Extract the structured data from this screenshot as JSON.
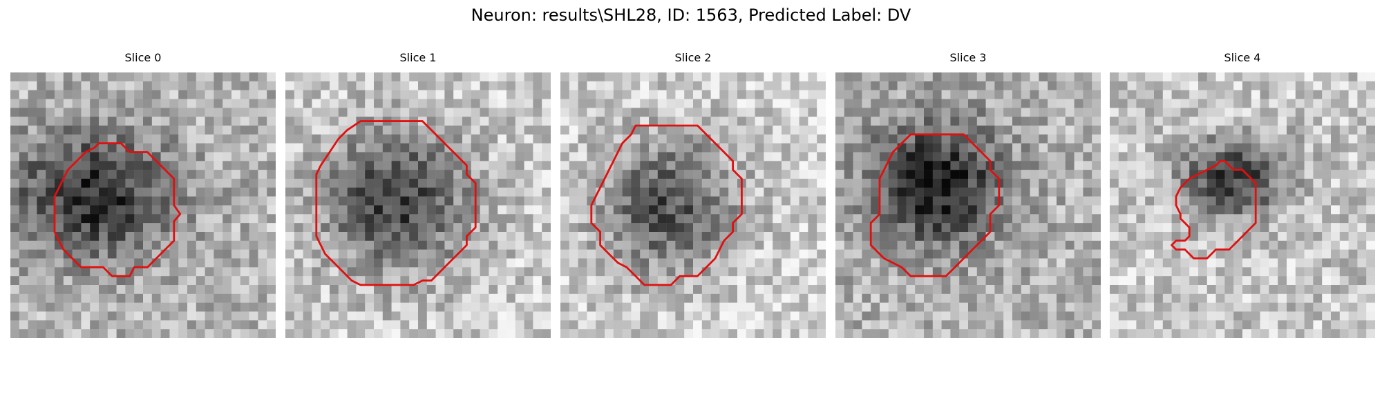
{
  "figure": {
    "title": "Neuron: results\\SHL28, ID: 1563, Predicted Label: DV"
  },
  "colors": {
    "contour": "#e01010",
    "background": "#ffffff"
  },
  "panels": [
    {
      "title": "Slice 0",
      "contour": [
        [
          10.5,
          8.0
        ],
        [
          12.5,
          8.0
        ],
        [
          13.5,
          9.0
        ],
        [
          14.5,
          9.0
        ],
        [
          15.5,
          9.0
        ],
        [
          16.5,
          10.0
        ],
        [
          17.5,
          11.0
        ],
        [
          18.5,
          12.0
        ],
        [
          18.5,
          13.0
        ],
        [
          18.5,
          14.0
        ],
        [
          18.5,
          15.0
        ],
        [
          19.2,
          16.0
        ],
        [
          18.5,
          16.8
        ],
        [
          18.5,
          18.0
        ],
        [
          18.5,
          19.0
        ],
        [
          17.5,
          20.0
        ],
        [
          16.5,
          21.0
        ],
        [
          15.5,
          22.0
        ],
        [
          14.0,
          22.0
        ],
        [
          13.5,
          23.0
        ],
        [
          11.5,
          23.0
        ],
        [
          10.5,
          22.0
        ],
        [
          9.5,
          22.0
        ],
        [
          8.0,
          22.0
        ],
        [
          7.0,
          21.0
        ],
        [
          6.0,
          20.0
        ],
        [
          5.5,
          19.0
        ],
        [
          5.0,
          18.0
        ],
        [
          5.0,
          16.0
        ],
        [
          5.0,
          15.0
        ],
        [
          5.0,
          14.0
        ],
        [
          5.5,
          13.0
        ],
        [
          6.0,
          12.0
        ],
        [
          6.5,
          11.0
        ],
        [
          7.5,
          10.0
        ],
        [
          8.5,
          9.0
        ],
        [
          9.5,
          8.5
        ],
        [
          10.0,
          8.0
        ]
      ],
      "darkness": {
        "cx": 9.2,
        "cy": 14.0,
        "rx": 11.0,
        "ry": 8.5,
        "strength": 0.55,
        "bg": 0.72,
        "seed": 11
      }
    },
    {
      "title": "Slice 1",
      "contour": [
        [
          8.5,
          5.5
        ],
        [
          15.5,
          5.5
        ],
        [
          16.5,
          6.5
        ],
        [
          17.5,
          7.5
        ],
        [
          18.5,
          8.5
        ],
        [
          19.5,
          9.5
        ],
        [
          20.5,
          10.5
        ],
        [
          20.5,
          11.5
        ],
        [
          21.5,
          12.5
        ],
        [
          21.5,
          17.5
        ],
        [
          20.5,
          18.5
        ],
        [
          20.5,
          19.5
        ],
        [
          19.5,
          20.5
        ],
        [
          18.5,
          21.5
        ],
        [
          17.5,
          22.5
        ],
        [
          16.5,
          23.5
        ],
        [
          15.5,
          23.5
        ],
        [
          14.5,
          24.0
        ],
        [
          8.5,
          24.0
        ],
        [
          7.5,
          23.5
        ],
        [
          6.5,
          22.5
        ],
        [
          5.5,
          21.5
        ],
        [
          4.5,
          20.5
        ],
        [
          4.0,
          19.5
        ],
        [
          3.5,
          18.5
        ],
        [
          3.5,
          11.5
        ],
        [
          4.0,
          10.5
        ],
        [
          5.0,
          9.0
        ],
        [
          6.0,
          7.5
        ],
        [
          7.0,
          6.5
        ]
      ],
      "darkness": {
        "cx": 12.5,
        "cy": 14.5,
        "rx": 9.5,
        "ry": 9.0,
        "strength": 0.55,
        "bg": 0.8,
        "seed": 23
      }
    },
    {
      "title": "Slice 2",
      "contour": [
        [
          8.5,
          6.0
        ],
        [
          15.5,
          6.0
        ],
        [
          16.5,
          7.0
        ],
        [
          17.5,
          8.0
        ],
        [
          18.5,
          9.0
        ],
        [
          19.5,
          10.0
        ],
        [
          19.5,
          11.0
        ],
        [
          20.5,
          12.0
        ],
        [
          20.5,
          16.0
        ],
        [
          19.5,
          17.0
        ],
        [
          19.5,
          18.0
        ],
        [
          18.5,
          19.0
        ],
        [
          18.0,
          20.0
        ],
        [
          17.5,
          21.0
        ],
        [
          16.5,
          22.0
        ],
        [
          15.5,
          23.0
        ],
        [
          13.5,
          23.0
        ],
        [
          12.5,
          24.0
        ],
        [
          9.5,
          24.0
        ],
        [
          8.5,
          23.0
        ],
        [
          7.5,
          22.0
        ],
        [
          6.5,
          21.5
        ],
        [
          5.5,
          20.5
        ],
        [
          4.5,
          19.5
        ],
        [
          4.5,
          18.0
        ],
        [
          3.5,
          17.0
        ],
        [
          3.5,
          15.0
        ],
        [
          4.0,
          14.0
        ],
        [
          4.5,
          13.0
        ],
        [
          5.0,
          12.0
        ],
        [
          5.5,
          11.0
        ],
        [
          6.0,
          10.0
        ],
        [
          7.0,
          8.0
        ],
        [
          8.0,
          7.0
        ]
      ],
      "darkness": {
        "cx": 12.0,
        "cy": 15.0,
        "rx": 9.0,
        "ry": 8.8,
        "strength": 0.5,
        "bg": 0.82,
        "seed": 37
      }
    },
    {
      "title": "Slice 3",
      "contour": [
        [
          8.5,
          7.0
        ],
        [
          14.5,
          7.0
        ],
        [
          15.5,
          8.0
        ],
        [
          16.5,
          9.0
        ],
        [
          17.5,
          10.0
        ],
        [
          17.5,
          11.0
        ],
        [
          18.5,
          12.0
        ],
        [
          18.5,
          15.0
        ],
        [
          17.5,
          16.0
        ],
        [
          17.5,
          18.0
        ],
        [
          16.5,
          19.0
        ],
        [
          15.5,
          20.0
        ],
        [
          14.5,
          21.0
        ],
        [
          13.5,
          22.0
        ],
        [
          12.5,
          23.0
        ],
        [
          8.5,
          23.0
        ],
        [
          7.5,
          22.0
        ],
        [
          6.5,
          21.5
        ],
        [
          5.5,
          21.0
        ],
        [
          4.5,
          20.0
        ],
        [
          4.0,
          19.5
        ],
        [
          4.0,
          17.0
        ],
        [
          5.0,
          16.0
        ],
        [
          5.0,
          15.0
        ],
        [
          5.0,
          12.0
        ],
        [
          5.5,
          11.0
        ],
        [
          6.5,
          9.0
        ],
        [
          7.5,
          8.0
        ]
      ],
      "darkness": {
        "cx": 11.5,
        "cy": 12.5,
        "rx": 8.5,
        "ry": 8.0,
        "strength": 0.6,
        "bg": 0.7,
        "seed": 53
      }
    },
    {
      "title": "Slice 4",
      "contour": [
        [
          11.0,
          11.0
        ],
        [
          12.0,
          10.5
        ],
        [
          12.5,
          10.0
        ],
        [
          13.0,
          10.0
        ],
        [
          14.0,
          11.0
        ],
        [
          15.0,
          11.0
        ],
        [
          16.0,
          12.0
        ],
        [
          16.5,
          12.5
        ],
        [
          16.5,
          17.0
        ],
        [
          15.5,
          18.0
        ],
        [
          14.5,
          19.0
        ],
        [
          13.5,
          20.0
        ],
        [
          12.0,
          20.0
        ],
        [
          11.0,
          21.0
        ],
        [
          9.5,
          21.0
        ],
        [
          8.5,
          20.0
        ],
        [
          7.5,
          20.0
        ],
        [
          7.0,
          19.5
        ],
        [
          7.5,
          19.0
        ],
        [
          8.5,
          19.0
        ],
        [
          9.0,
          18.5
        ],
        [
          9.0,
          17.5
        ],
        [
          8.0,
          16.5
        ],
        [
          8.0,
          16.0
        ],
        [
          7.5,
          15.0
        ],
        [
          7.5,
          14.0
        ],
        [
          8.0,
          13.0
        ],
        [
          9.0,
          12.0
        ],
        [
          10.0,
          11.5
        ]
      ],
      "darkness": {
        "cx": 14.0,
        "cy": 12.0,
        "rx": 7.0,
        "ry": 5.0,
        "strength": 0.55,
        "bg": 0.78,
        "seed": 71
      }
    }
  ]
}
